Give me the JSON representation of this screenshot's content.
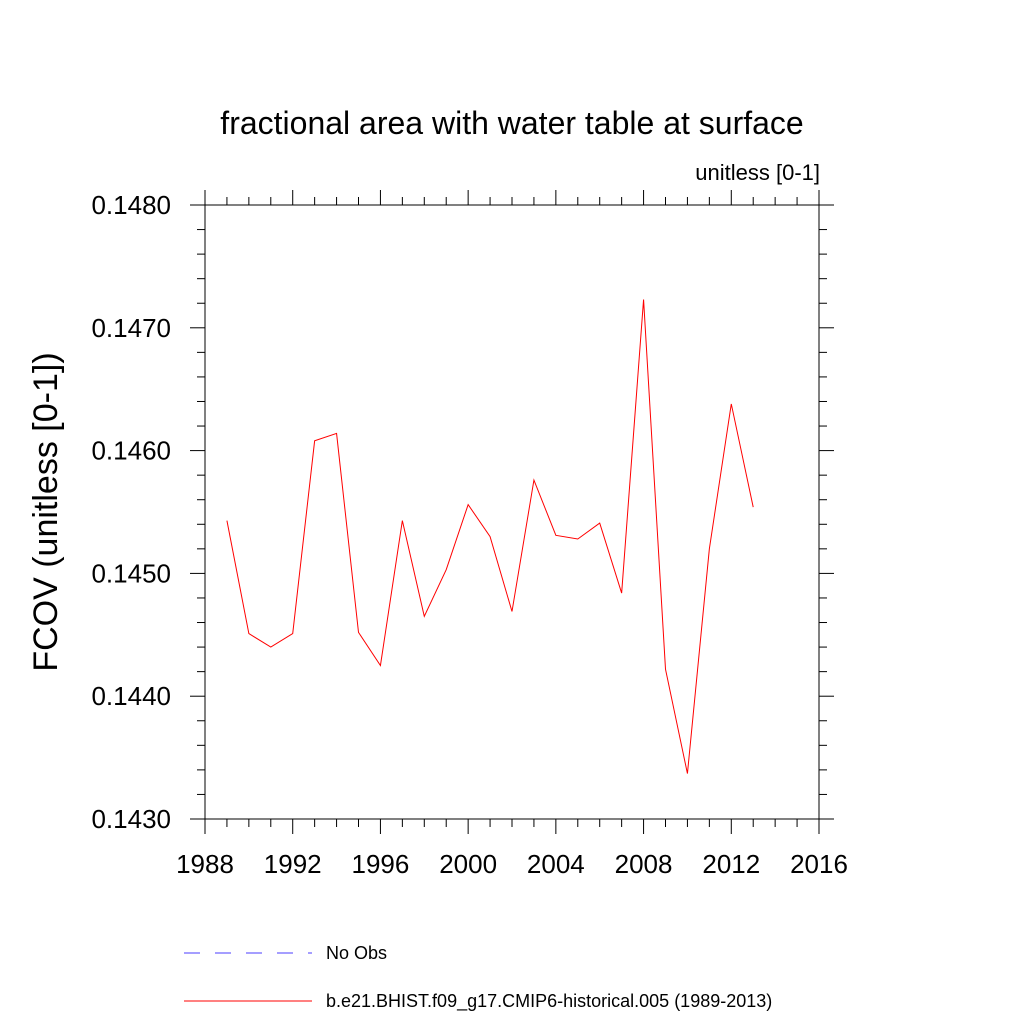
{
  "chart_data": {
    "type": "line",
    "title": "fractional area with water table at surface",
    "units_label": "unitless [0-1]",
    "ylabel": "FCOV  (unitless [0-1])",
    "xlabel": "",
    "xlim": [
      1988,
      2016
    ],
    "ylim": [
      0.143,
      0.148
    ],
    "x_ticks": [
      1988,
      1992,
      1996,
      2000,
      2004,
      2008,
      2012,
      2016
    ],
    "x_tick_labels": [
      "1988",
      "1992",
      "1996",
      "2000",
      "2004",
      "2008",
      "2012",
      "2016"
    ],
    "y_ticks": [
      0.143,
      0.144,
      0.145,
      0.146,
      0.147,
      0.148
    ],
    "y_tick_labels": [
      "0.1430",
      "0.1440",
      "0.1450",
      "0.1460",
      "0.1470",
      "0.1480"
    ],
    "x": [
      1989,
      1990,
      1991,
      1992,
      1993,
      1994,
      1995,
      1996,
      1997,
      1998,
      1999,
      2000,
      2001,
      2002,
      2003,
      2004,
      2005,
      2006,
      2007,
      2008,
      2009,
      2010,
      2011,
      2012,
      2013
    ],
    "series": [
      {
        "name": "b.e21.BHIST.f09_g17.CMIP6-historical.005 (1989-2013)",
        "color": "#ff0000",
        "dash": "solid",
        "values": [
          0.14543,
          0.14451,
          0.1444,
          0.14451,
          0.14608,
          0.14614,
          0.14452,
          0.14425,
          0.14543,
          0.14465,
          0.14503,
          0.14556,
          0.1453,
          0.14469,
          0.14576,
          0.14531,
          0.14528,
          0.14541,
          0.14484,
          0.14723,
          0.14422,
          0.14337,
          0.1452,
          0.14638,
          0.14554
        ]
      }
    ],
    "legend": [
      {
        "label": "No Obs",
        "color": "#4b3cff",
        "dash": "dashed"
      },
      {
        "label": "b.e21.BHIST.f09_g17.CMIP6-historical.005 (1989-2013)",
        "color": "#ff0000",
        "dash": "solid"
      }
    ],
    "legend_position": "bottom"
  }
}
